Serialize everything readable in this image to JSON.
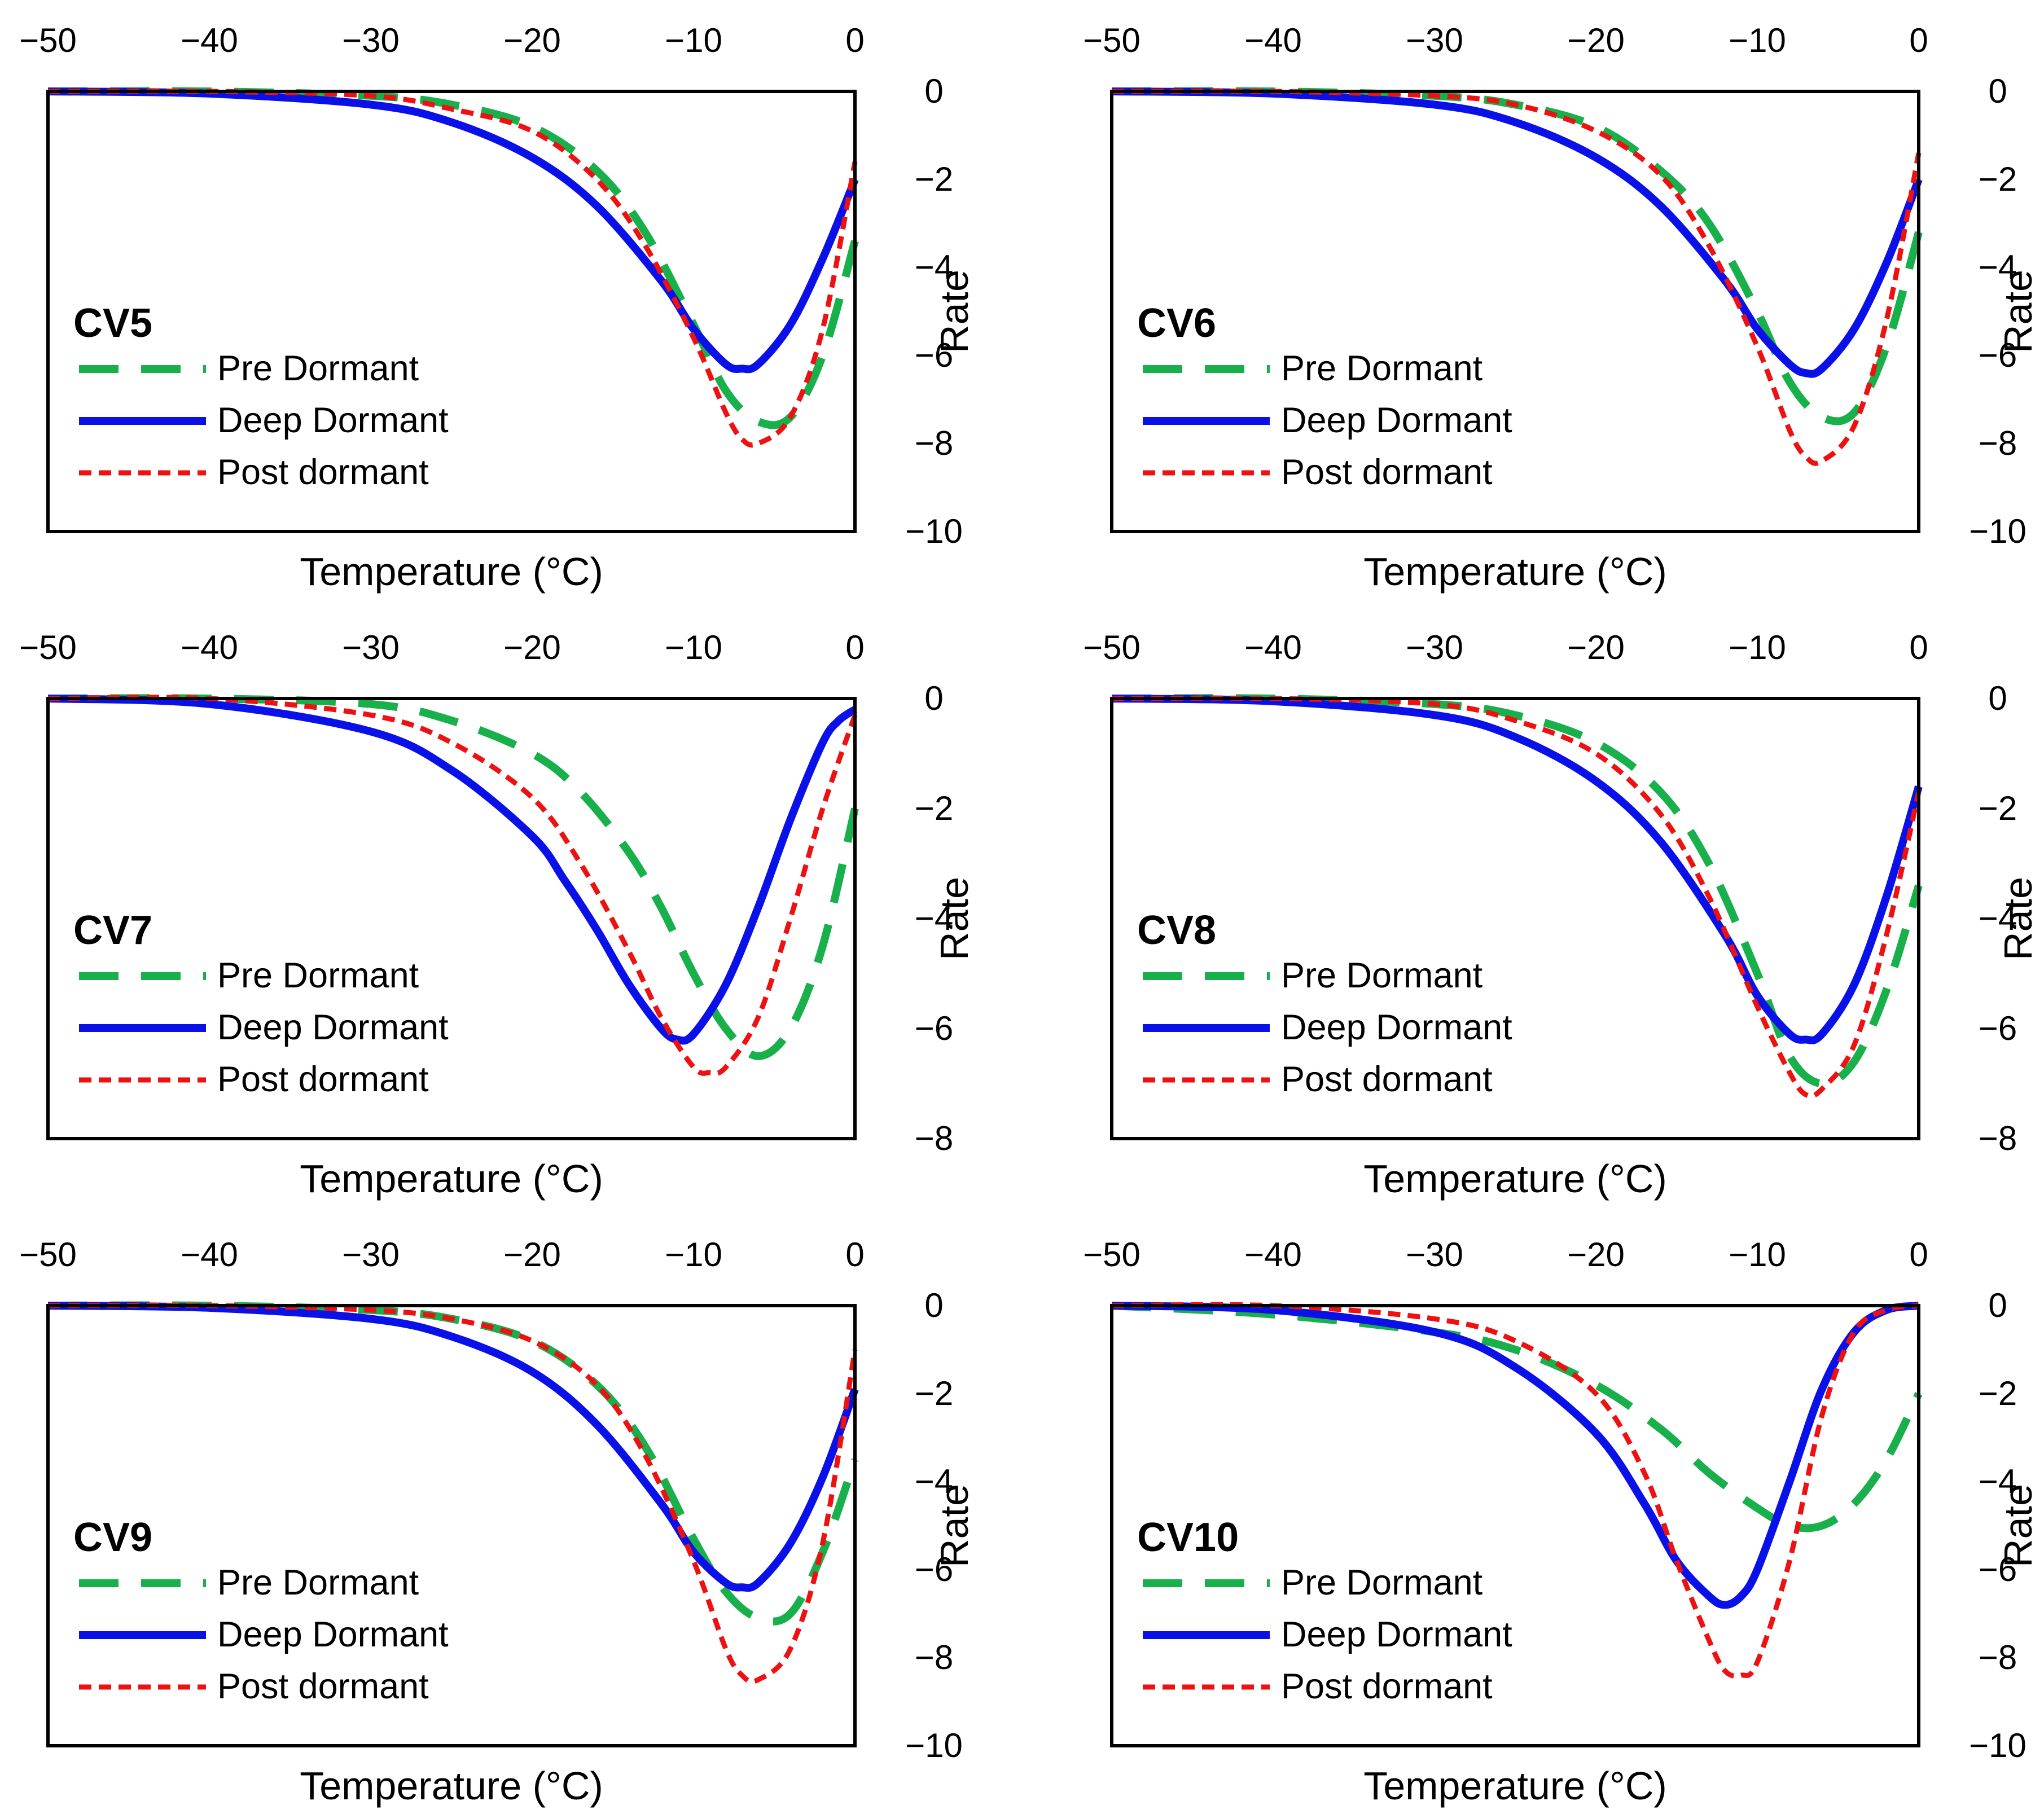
{
  "legend_labels": [
    "Pre Dormant",
    "Deep Dormant",
    "Post dormant"
  ],
  "series_colors": [
    "#18b04a",
    "#0a10e8",
    "#ee1111"
  ],
  "chart_data": [
    {
      "panel": "CV5",
      "type": "line",
      "xlabel": "Temperature (°C)",
      "ylabel": "Rate",
      "xlim": [
        -50,
        0
      ],
      "ylim": [
        -10,
        0
      ],
      "xticks": [
        -50,
        -40,
        -30,
        -20,
        -10,
        0
      ],
      "yticks": [
        0,
        -2,
        -4,
        -6,
        -8,
        -10
      ],
      "series": [
        {
          "name": "Pre Dormant",
          "x": [
            -50,
            -40,
            -30,
            -25,
            -20,
            -16,
            -13,
            -10,
            -8,
            -6,
            -4,
            -2,
            0
          ],
          "values": [
            0,
            0,
            -0.1,
            -0.3,
            -0.8,
            -1.8,
            -3.2,
            -5.3,
            -6.8,
            -7.5,
            -7.4,
            -6,
            -3.4
          ]
        },
        {
          "name": "Deep Dormant",
          "x": [
            -50,
            -40,
            -30,
            -25,
            -20,
            -16,
            -12,
            -10,
            -8,
            -7,
            -6,
            -4,
            -2,
            0
          ],
          "values": [
            0,
            -0.05,
            -0.3,
            -0.7,
            -1.5,
            -2.6,
            -4.3,
            -5.4,
            -6.2,
            -6.3,
            -6.2,
            -5.3,
            -3.8,
            -2.0
          ]
        },
        {
          "name": "Post dormant",
          "x": [
            -50,
            -40,
            -30,
            -25,
            -20,
            -16,
            -13,
            -10,
            -8,
            -7,
            -6,
            -4,
            -2,
            0
          ],
          "values": [
            0,
            0,
            -0.1,
            -0.4,
            -0.9,
            -2.0,
            -3.5,
            -5.6,
            -7.3,
            -7.9,
            -8.0,
            -7.4,
            -5.4,
            -1.6
          ]
        }
      ]
    },
    {
      "panel": "CV6",
      "type": "line",
      "xlabel": "Temperature (°C)",
      "ylabel": "Rate",
      "xlim": [
        -50,
        0
      ],
      "ylim": [
        -10,
        0
      ],
      "xticks": [
        -50,
        -40,
        -30,
        -20,
        -10,
        0
      ],
      "yticks": [
        0,
        -2,
        -4,
        -6,
        -8,
        -10
      ],
      "series": [
        {
          "name": "Pre Dormant",
          "x": [
            -50,
            -40,
            -30,
            -25,
            -20,
            -16,
            -13,
            -10,
            -8,
            -6,
            -4,
            -2,
            0
          ],
          "values": [
            0,
            0,
            -0.1,
            -0.3,
            -0.8,
            -1.8,
            -3.0,
            -5.0,
            -6.6,
            -7.4,
            -7.3,
            -5.8,
            -3.2
          ]
        },
        {
          "name": "Deep Dormant",
          "x": [
            -50,
            -40,
            -30,
            -25,
            -20,
            -16,
            -12,
            -10,
            -8,
            -7,
            -6,
            -4,
            -2,
            0
          ],
          "values": [
            0,
            -0.05,
            -0.3,
            -0.7,
            -1.5,
            -2.6,
            -4.3,
            -5.4,
            -6.2,
            -6.4,
            -6.3,
            -5.4,
            -3.9,
            -2.0
          ]
        },
        {
          "name": "Post dormant",
          "x": [
            -50,
            -40,
            -30,
            -25,
            -20,
            -16,
            -13,
            -10,
            -8,
            -7,
            -6,
            -4,
            -2,
            0
          ],
          "values": [
            0,
            0,
            -0.1,
            -0.3,
            -0.9,
            -1.9,
            -3.5,
            -5.8,
            -7.7,
            -8.3,
            -8.4,
            -7.6,
            -5.2,
            -1.4
          ]
        }
      ]
    },
    {
      "panel": "CV7",
      "type": "line",
      "xlabel": "Temperature (°C)",
      "ylabel": "Rate",
      "xlim": [
        -50,
        0
      ],
      "ylim": [
        -8,
        0
      ],
      "xticks": [
        -50,
        -40,
        -30,
        -20,
        -10,
        0
      ],
      "yticks": [
        0,
        -2,
        -4,
        -6,
        -8
      ],
      "series": [
        {
          "name": "Pre Dormant",
          "x": [
            -50,
            -40,
            -30,
            -25,
            -20,
            -17,
            -14,
            -12,
            -10,
            -8,
            -6,
            -4,
            -2,
            0
          ],
          "values": [
            0,
            0,
            -0.1,
            -0.4,
            -1.0,
            -1.7,
            -2.8,
            -3.8,
            -5.0,
            -6.0,
            -6.5,
            -6.0,
            -4.5,
            -2.0
          ]
        },
        {
          "name": "Deep Dormant",
          "x": [
            -50,
            -40,
            -30,
            -25,
            -20,
            -18,
            -16,
            -14,
            -12,
            -11,
            -10,
            -8,
            -6,
            -4,
            -2,
            -1,
            0
          ],
          "values": [
            0,
            -0.1,
            -0.6,
            -1.3,
            -2.5,
            -3.3,
            -4.2,
            -5.2,
            -6.0,
            -6.2,
            -6.1,
            -5.2,
            -3.8,
            -2.2,
            -0.8,
            -0.4,
            -0.2
          ]
        },
        {
          "name": "Post dormant",
          "x": [
            -50,
            -40,
            -30,
            -25,
            -20,
            -17,
            -14,
            -12,
            -10,
            -9,
            -8,
            -6,
            -4,
            -2,
            0
          ],
          "values": [
            0,
            0,
            -0.3,
            -0.8,
            -1.8,
            -3.0,
            -4.6,
            -5.8,
            -6.7,
            -6.8,
            -6.7,
            -5.8,
            -4.0,
            -2.0,
            -0.3
          ]
        }
      ]
    },
    {
      "panel": "CV8",
      "type": "line",
      "xlabel": "Temperature (°C)",
      "ylabel": "Rate",
      "xlim": [
        -50,
        0
      ],
      "ylim": [
        -8,
        0
      ],
      "xticks": [
        -50,
        -40,
        -30,
        -20,
        -10,
        0
      ],
      "yticks": [
        0,
        -2,
        -4,
        -6,
        -8
      ],
      "series": [
        {
          "name": "Pre Dormant",
          "x": [
            -50,
            -40,
            -30,
            -25,
            -20,
            -16,
            -13,
            -10,
            -8,
            -6,
            -4,
            -2,
            0
          ],
          "values": [
            0,
            0,
            -0.1,
            -0.3,
            -0.8,
            -1.7,
            -3.0,
            -5.0,
            -6.5,
            -7.0,
            -6.6,
            -5.3,
            -3.4
          ]
        },
        {
          "name": "Deep Dormant",
          "x": [
            -50,
            -40,
            -30,
            -25,
            -20,
            -16,
            -12,
            -10,
            -8,
            -7,
            -6,
            -4,
            -2,
            0
          ],
          "values": [
            0,
            -0.05,
            -0.3,
            -0.7,
            -1.5,
            -2.6,
            -4.3,
            -5.4,
            -6.1,
            -6.2,
            -6.1,
            -5.2,
            -3.6,
            -1.6
          ]
        },
        {
          "name": "Post dormant",
          "x": [
            -50,
            -40,
            -30,
            -25,
            -20,
            -16,
            -13,
            -10,
            -8,
            -7,
            -6,
            -4,
            -2,
            0
          ],
          "values": [
            0,
            0,
            -0.1,
            -0.4,
            -1.0,
            -2.1,
            -3.6,
            -5.6,
            -6.8,
            -7.2,
            -7.1,
            -6.3,
            -4.3,
            -1.7
          ]
        }
      ]
    },
    {
      "panel": "CV9",
      "type": "line",
      "xlabel": "Temperature (°C)",
      "ylabel": "Rate",
      "xlim": [
        -50,
        0
      ],
      "ylim": [
        -10,
        0
      ],
      "xticks": [
        -50,
        -40,
        -30,
        -20,
        -10,
        0
      ],
      "yticks": [
        0,
        -2,
        -4,
        -6,
        -8,
        -10
      ],
      "series": [
        {
          "name": "Pre Dormant",
          "x": [
            -50,
            -40,
            -30,
            -25,
            -20,
            -16,
            -13,
            -10,
            -8,
            -6,
            -4,
            -2,
            0
          ],
          "values": [
            0,
            0,
            -0.1,
            -0.3,
            -0.8,
            -1.8,
            -3.2,
            -5.3,
            -6.5,
            -7.1,
            -7.0,
            -5.6,
            -3.5
          ]
        },
        {
          "name": "Deep Dormant",
          "x": [
            -50,
            -40,
            -30,
            -25,
            -20,
            -16,
            -12,
            -10,
            -8,
            -7,
            -6,
            -4,
            -2,
            0
          ],
          "values": [
            0,
            -0.05,
            -0.3,
            -0.7,
            -1.5,
            -2.7,
            -4.5,
            -5.6,
            -6.3,
            -6.4,
            -6.3,
            -5.4,
            -3.9,
            -1.9
          ]
        },
        {
          "name": "Post dormant",
          "x": [
            -50,
            -40,
            -30,
            -25,
            -20,
            -16,
            -13,
            -10,
            -8,
            -7,
            -6,
            -4,
            -2,
            0
          ],
          "values": [
            0,
            0,
            -0.1,
            -0.3,
            -0.8,
            -1.8,
            -3.4,
            -5.8,
            -7.8,
            -8.4,
            -8.5,
            -7.8,
            -5.4,
            -1.0
          ]
        }
      ]
    },
    {
      "panel": "CV10",
      "type": "line",
      "xlabel": "Temperature (°C)",
      "ylabel": "Rate",
      "xlim": [
        -50,
        0
      ],
      "ylim": [
        -10,
        0
      ],
      "xticks": [
        -50,
        -40,
        -30,
        -20,
        -10,
        0
      ],
      "yticks": [
        0,
        -2,
        -4,
        -6,
        -8,
        -10
      ],
      "series": [
        {
          "name": "Pre Dormant",
          "x": [
            -50,
            -40,
            -30,
            -25,
            -20,
            -16,
            -13,
            -10,
            -8,
            -6,
            -4,
            -2,
            0
          ],
          "values": [
            0,
            -0.2,
            -0.6,
            -1.0,
            -1.8,
            -2.8,
            -3.8,
            -4.6,
            -5.0,
            -5.0,
            -4.5,
            -3.5,
            -2.0
          ]
        },
        {
          "name": "Deep Dormant",
          "x": [
            -50,
            -40,
            -30,
            -25,
            -20,
            -17,
            -15,
            -13,
            -12,
            -11,
            -10,
            -8,
            -6,
            -4,
            -2,
            0
          ],
          "values": [
            0,
            -0.1,
            -0.6,
            -1.4,
            -2.9,
            -4.5,
            -5.8,
            -6.6,
            -6.8,
            -6.6,
            -6.0,
            -4.0,
            -1.9,
            -0.6,
            -0.1,
            0
          ]
        },
        {
          "name": "Post dormant",
          "x": [
            -50,
            -40,
            -30,
            -25,
            -20,
            -17,
            -15,
            -13,
            -12,
            -11,
            -10,
            -8,
            -6,
            -4,
            -2,
            0
          ],
          "values": [
            0,
            0,
            -0.3,
            -0.8,
            -2.0,
            -3.8,
            -5.8,
            -7.6,
            -8.3,
            -8.4,
            -8.1,
            -5.8,
            -2.5,
            -0.6,
            -0.1,
            0
          ]
        }
      ]
    }
  ]
}
